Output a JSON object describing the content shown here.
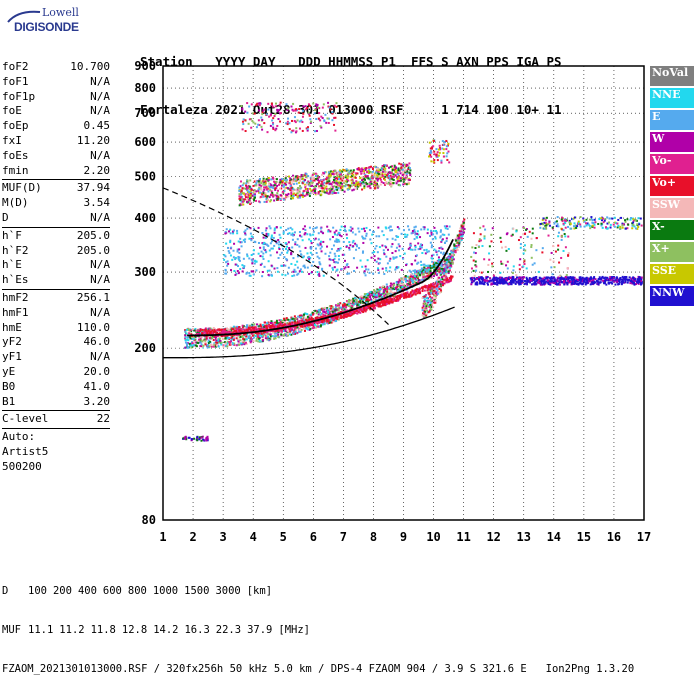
{
  "logo": {
    "brand_top": "Lowell",
    "brand_bottom": "DIGISONDE"
  },
  "header": {
    "labels": [
      "Station",
      "YYYY",
      "DAY",
      "DDD",
      "HHMMSS",
      "P1",
      "FFS",
      "S",
      "AXN",
      "PPS",
      "IGA",
      "PS"
    ],
    "values": [
      "Fortaleza",
      "2021",
      "Out28",
      "301",
      "013000",
      "RSF",
      "",
      "1",
      "714",
      "100",
      "10+",
      "11"
    ]
  },
  "params_group1": [
    {
      "label": "foF2",
      "value": "10.700"
    },
    {
      "label": "foF1",
      "value": "N/A"
    },
    {
      "label": "foF1p",
      "value": "N/A"
    },
    {
      "label": "foE",
      "value": "N/A"
    },
    {
      "label": "foEp",
      "value": "0.45"
    },
    {
      "label": "fxI",
      "value": "11.20"
    },
    {
      "label": "foEs",
      "value": "N/A"
    },
    {
      "label": "fmin",
      "value": "2.20"
    }
  ],
  "params_group2": [
    {
      "label": "MUF(D)",
      "value": "37.94"
    },
    {
      "label": "M(D)",
      "value": "3.54"
    },
    {
      "label": "D",
      "value": "N/A"
    }
  ],
  "params_group3": [
    {
      "label": "h`F",
      "value": "205.0"
    },
    {
      "label": "h`F2",
      "value": "205.0"
    },
    {
      "label": "h`E",
      "value": "N/A"
    },
    {
      "label": "h`Es",
      "value": "N/A"
    }
  ],
  "params_group4": [
    {
      "label": "hmF2",
      "value": "256.1"
    },
    {
      "label": "hmF1",
      "value": "N/A"
    },
    {
      "label": "hmE",
      "value": "110.0"
    },
    {
      "label": "yF2",
      "value": "46.0"
    },
    {
      "label": "yF1",
      "value": "N/A"
    },
    {
      "label": "yE",
      "value": "20.0"
    },
    {
      "label": "B0",
      "value": "41.0"
    },
    {
      "label": "B1",
      "value": "3.20"
    }
  ],
  "params_group5": [
    {
      "label": "C-level",
      "value": "22"
    }
  ],
  "auto": {
    "line1": "Auto:",
    "line2": "Artist5",
    "line3": "500200"
  },
  "legend": [
    {
      "label": "NoVal",
      "color": "#7f7f7f"
    },
    {
      "label": "NNE",
      "color": "#22d8ee"
    },
    {
      "label": "E",
      "color": "#55aaee"
    },
    {
      "label": "W",
      "color": "#b000a8"
    },
    {
      "label": "Vo-",
      "color": "#e02090"
    },
    {
      "label": "Vo+",
      "color": "#e8102a"
    },
    {
      "label": "SSW",
      "color": "#f4b8b8"
    },
    {
      "label": "X-",
      "color": "#0a7a10"
    },
    {
      "label": "X+",
      "color": "#8ec060"
    },
    {
      "label": "SSE",
      "color": "#c8c800"
    },
    {
      "label": "NNW",
      "color": "#2010d0"
    }
  ],
  "chart_data": {
    "type": "scatter",
    "title": "",
    "xlabel": "",
    "ylabel": "",
    "xlim": [
      1,
      17
    ],
    "ylim": [
      80,
      900
    ],
    "y_scale": "log",
    "x_ticks": [
      "1",
      "2",
      "3",
      "4",
      "5",
      "6",
      "7",
      "8",
      "9",
      "10",
      "11",
      "12",
      "13",
      "14",
      "15",
      "16",
      "17"
    ],
    "y_ticks": [
      "80",
      "200",
      "300",
      "400",
      "500",
      "600",
      "700",
      "800",
      "900"
    ],
    "grid": true,
    "legend_placement": "right"
  },
  "footer": {
    "d_label": "D",
    "d_values": [
      "100",
      "200",
      "400",
      "600",
      "800",
      "1000",
      "1500",
      "3000",
      "[km]"
    ],
    "muf_label": "MUF",
    "muf_values": [
      "11.1",
      "11.2",
      "11.8",
      "12.8",
      "14.2",
      "16.3",
      "22.3",
      "37.9",
      "[MHz]"
    ],
    "info": "FZAOM_2021301013000.RSF / 320fx256h 50 kHz 5.0 km / DPS-4 FZAOM 904 / 3.9 S 321.6 E   Ion2Png 1.3.20"
  }
}
